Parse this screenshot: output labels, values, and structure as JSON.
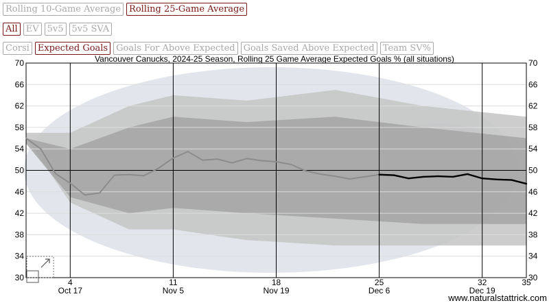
{
  "controls": {
    "window_buttons": [
      {
        "label": "Rolling 10-Game Average",
        "active": false
      },
      {
        "label": "Rolling 25-Game Average",
        "active": true
      }
    ],
    "situation_buttons": [
      {
        "label": "All",
        "active": true
      },
      {
        "label": "EV",
        "active": false
      },
      {
        "label": "5v5",
        "active": false
      },
      {
        "label": "5v5 SVA",
        "active": false
      }
    ],
    "metric_buttons": [
      {
        "label": "Corsi",
        "active": false
      },
      {
        "label": "Expected Goals",
        "active": true
      },
      {
        "label": "Goals For Above Expected",
        "active": false
      },
      {
        "label": "Goals Saved Above Expected",
        "active": false
      },
      {
        "label": "Team SV%",
        "active": false
      }
    ]
  },
  "colors": {
    "active_button": "#7a1616",
    "inactive_button": "#a9a9a9",
    "line_early": "#8c8c8c",
    "line_recent": "#000000",
    "band_outer": "#c4c4c4",
    "band_inner": "#a5a5a5",
    "logo_watermark": "#e2e6ec"
  },
  "chart_data": {
    "type": "line",
    "title": "Vancouver Canucks, 2024-25 Season, Rolling 25 Game Average Expected Goals % (all situations)",
    "xlabel": "",
    "ylabel": "",
    "xlim": [
      1,
      35
    ],
    "ylim": [
      30,
      70
    ],
    "y_ticks": [
      30,
      34,
      38,
      42,
      46,
      50,
      54,
      58,
      62,
      66,
      70
    ],
    "x_ticks": [
      {
        "value": 4,
        "label": "4",
        "date": "Oct 17"
      },
      {
        "value": 11,
        "label": "11",
        "date": "Nov 5"
      },
      {
        "value": 18,
        "label": "18",
        "date": "Nov 19"
      },
      {
        "value": 25,
        "label": "25",
        "date": "Dec 6"
      },
      {
        "value": 32,
        "label": "32",
        "date": "Dec 19"
      },
      {
        "value": 35,
        "label": "35",
        "date": ""
      }
    ],
    "reference_line": 50,
    "grid": true,
    "series": [
      {
        "x": [
          1,
          2,
          3,
          4,
          5,
          6,
          7,
          8,
          9,
          10,
          11,
          12,
          13,
          14,
          15,
          16,
          17,
          18,
          19,
          20,
          21,
          22,
          23,
          24,
          25,
          26,
          27,
          28,
          29,
          30,
          31,
          32,
          33,
          34,
          35
        ],
        "values": [
          56.0,
          54.0,
          49.4,
          47.6,
          45.4,
          45.8,
          49.1,
          49.2,
          49.0,
          50.4,
          52.3,
          53.5,
          51.9,
          52.1,
          51.4,
          52.2,
          51.8,
          51.6,
          51.1,
          49.9,
          49.3,
          48.9,
          48.4,
          48.8,
          49.2,
          49.1,
          48.5,
          48.8,
          48.9,
          48.8,
          49.3,
          48.5,
          48.3,
          48.2,
          47.5
        ]
      }
    ],
    "annotation": "www.naturalstattrick.com"
  }
}
